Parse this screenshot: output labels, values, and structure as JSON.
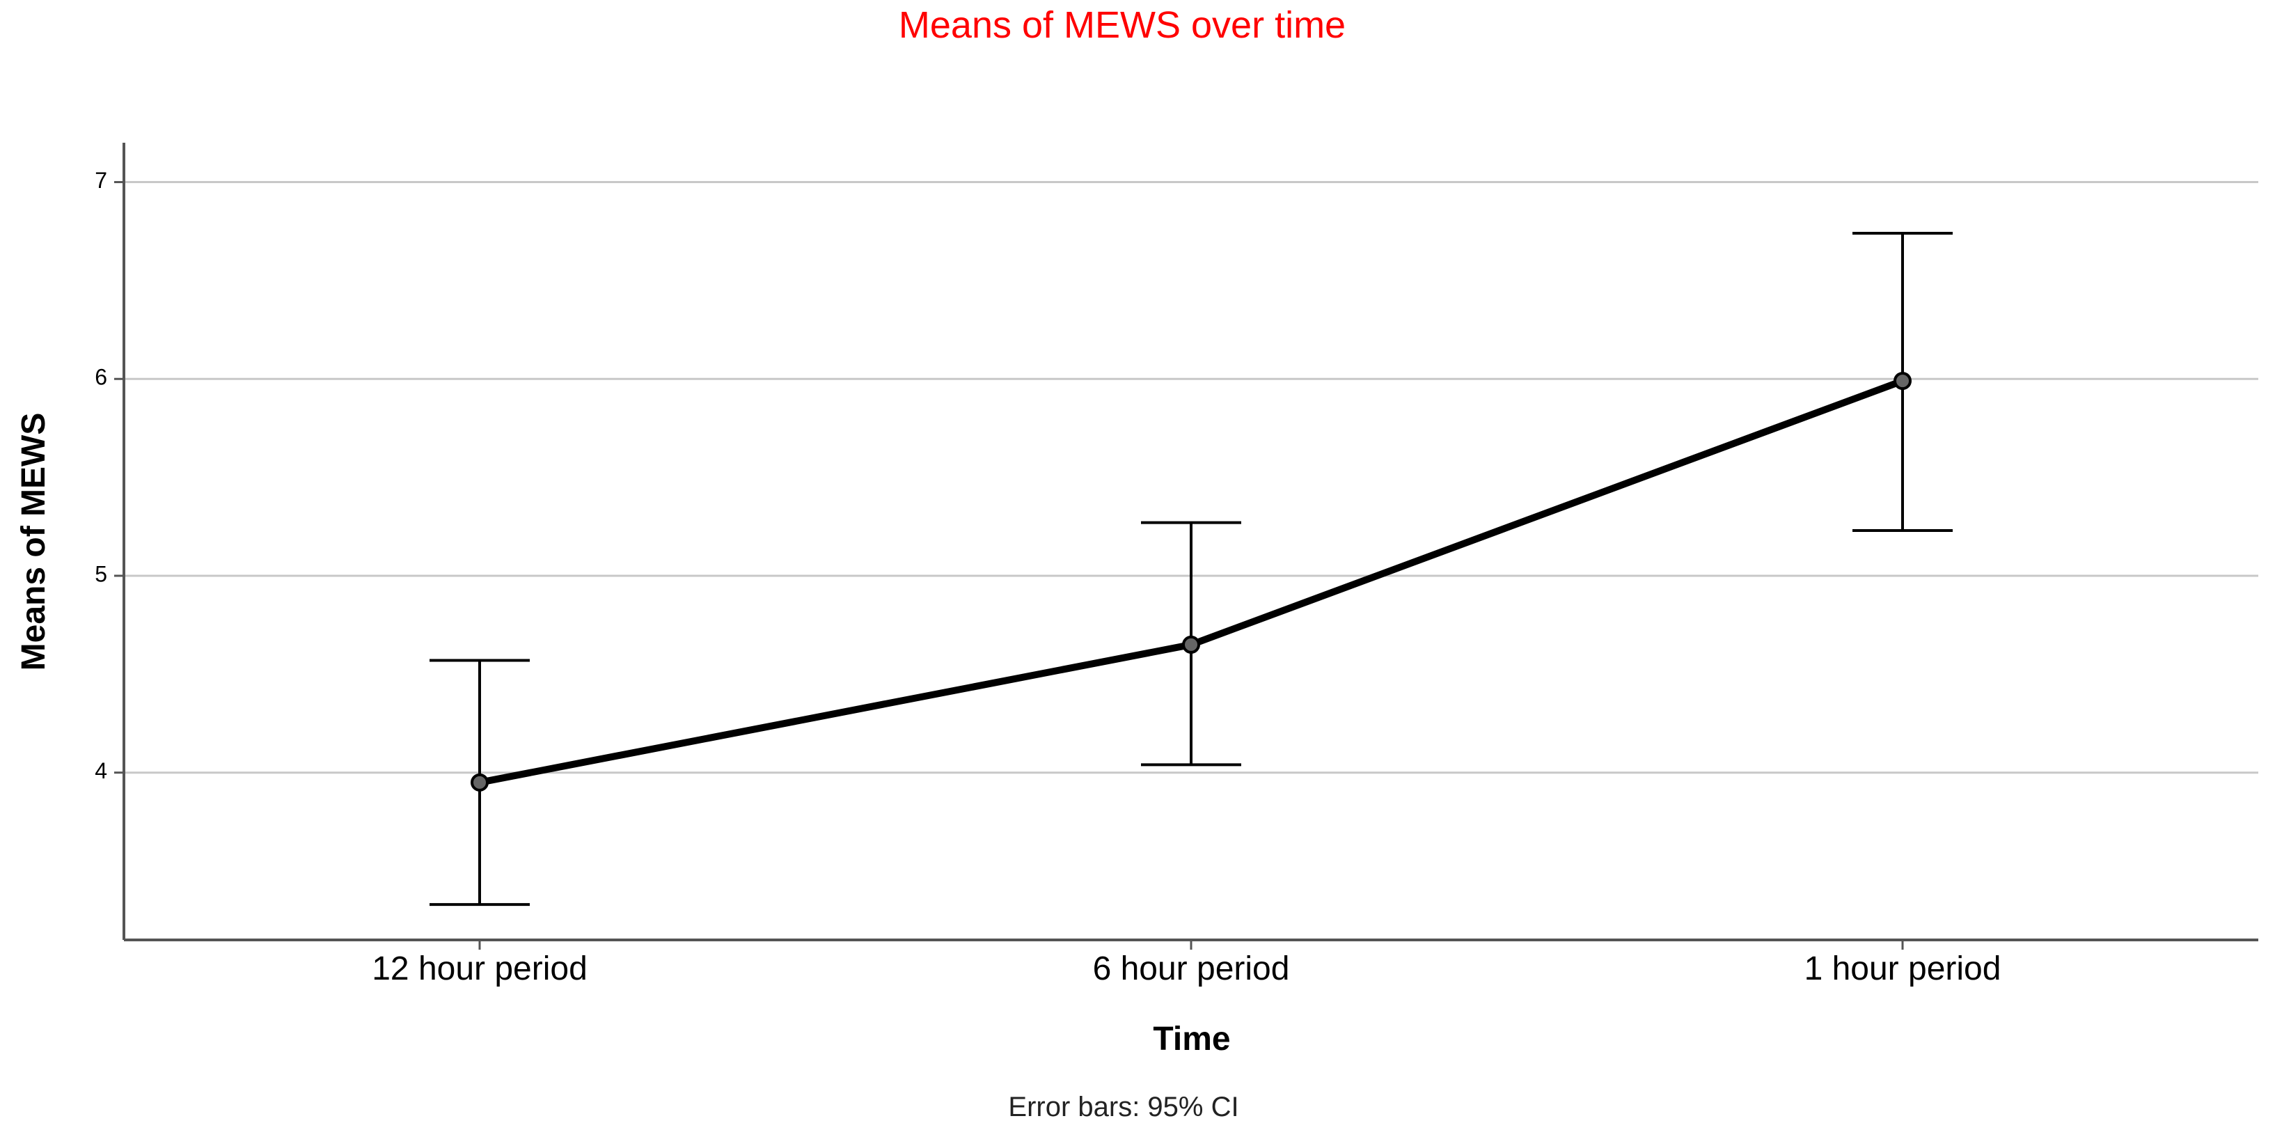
{
  "chart_data": {
    "type": "line",
    "title": "Means of MEWS over time",
    "xlabel": "Time",
    "ylabel": "Means of MEWS",
    "footnote": "Error bars: 95% CI",
    "categories": [
      "12 hour period",
      "6 hour period",
      "1 hour period"
    ],
    "series": [
      {
        "values": [
          3.95,
          4.65,
          5.99
        ],
        "ci_lower": [
          3.33,
          4.04,
          5.23
        ],
        "ci_upper": [
          4.57,
          5.27,
          6.74
        ]
      }
    ],
    "ylim": [
      3.15,
      7.2
    ],
    "yticks": [
      "4",
      "5",
      "6",
      "7"
    ],
    "grid": true,
    "colors": {
      "title": "#ff0000",
      "line": "#000000",
      "gridline": "#c8c8c8",
      "axis": "#555555",
      "marker_fill": "#666666"
    }
  }
}
